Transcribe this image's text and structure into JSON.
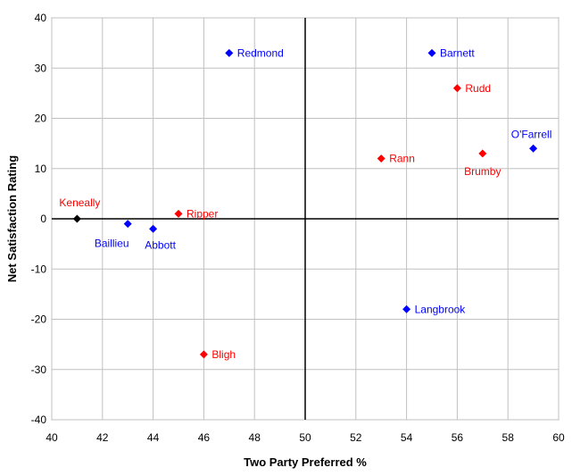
{
  "chart_data": {
    "type": "scatter",
    "title": "",
    "xlabel": "Two Party Preferred %",
    "ylabel": "Net Satisfaction Rating",
    "xlim": [
      40,
      60
    ],
    "ylim": [
      -40,
      40
    ],
    "xticks": [
      40,
      42,
      44,
      46,
      48,
      50,
      52,
      54,
      56,
      58,
      60
    ],
    "yticks": [
      -40,
      -30,
      -20,
      -10,
      0,
      10,
      20,
      30,
      40
    ],
    "grid": true,
    "reference_lines": {
      "x": 50,
      "y": 0
    },
    "colors": {
      "blue": "#0000ff",
      "red": "#ff0000",
      "black": "#000000",
      "grid": "#c0c0c0"
    },
    "points": [
      {
        "label": "Redmond",
        "x": 47,
        "y": 33,
        "color": "#0000ff",
        "label_pos": "right"
      },
      {
        "label": "Barnett",
        "x": 55,
        "y": 33,
        "color": "#0000ff",
        "label_pos": "right"
      },
      {
        "label": "Rudd",
        "x": 56,
        "y": 26,
        "color": "#ff0000",
        "label_pos": "right"
      },
      {
        "label": "O'Farrell",
        "x": 59,
        "y": 14,
        "color": "#0000ff",
        "label_pos": "above-left"
      },
      {
        "label": "Rann",
        "x": 53,
        "y": 12,
        "color": "#ff0000",
        "label_pos": "right"
      },
      {
        "label": "Brumby",
        "x": 57,
        "y": 13,
        "color": "#ff0000",
        "label_pos": "below-left"
      },
      {
        "label": "Keneally",
        "x": 41,
        "y": 0,
        "color": "#000000",
        "label_pos": "above-right",
        "label_color": "#ff0000"
      },
      {
        "label": "Baillieu",
        "x": 43,
        "y": -1,
        "color": "#0000ff",
        "label_pos": "below-left"
      },
      {
        "label": "Abbott",
        "x": 44,
        "y": -2,
        "color": "#0000ff",
        "label_pos": "below"
      },
      {
        "label": "Ripper",
        "x": 45,
        "y": 1,
        "color": "#ff0000",
        "label_pos": "right"
      },
      {
        "label": "Langbrook",
        "x": 54,
        "y": -18,
        "color": "#0000ff",
        "label_pos": "right"
      },
      {
        "label": "Bligh",
        "x": 46,
        "y": -27,
        "color": "#ff0000",
        "label_pos": "right"
      }
    ]
  }
}
